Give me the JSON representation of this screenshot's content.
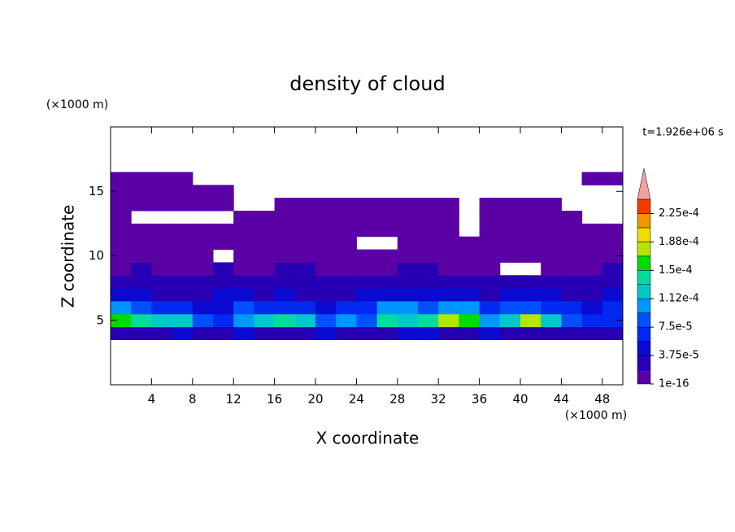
{
  "chart_data": {
    "type": "contour",
    "title": "density of cloud",
    "x_label": "X coordinate",
    "y_label": "Z coordinate",
    "x_unit": "(×1000 m)",
    "y_unit": "(×1000 m)",
    "time_label": "t=1.926e+06 s",
    "xlim": [
      0,
      50
    ],
    "ylim": [
      0,
      20
    ],
    "xticks": [
      4,
      8,
      12,
      16,
      20,
      24,
      28,
      32,
      36,
      40,
      44,
      48
    ],
    "yticks": [
      5,
      10,
      15
    ],
    "xbins": [
      0,
      2,
      4,
      6,
      8,
      10,
      12,
      14,
      16,
      18,
      20,
      22,
      24,
      26,
      28,
      30,
      32,
      34,
      36,
      38,
      40,
      42,
      44,
      46,
      48,
      50
    ],
    "ybins": [
      3.5,
      4.5,
      5.5,
      6.5,
      7.5,
      8.5,
      9.5,
      10.5,
      11.5,
      12.5,
      13.5,
      14.5,
      15.5,
      16.5
    ],
    "values": [
      [
        3e-05,
        3e-05,
        3e-05,
        4e-05,
        3e-05,
        3e-05,
        4e-05,
        3e-05,
        3e-05,
        3e-05,
        4e-05,
        3e-05,
        3e-05,
        3e-05,
        4e-05,
        4e-05,
        3e-05,
        3e-05,
        4e-05,
        3e-05,
        3e-05,
        3e-05,
        3e-05,
        3e-05,
        3e-05
      ],
      [
        0.00015,
        0.00014,
        0.00012,
        0.00012,
        9e-05,
        7e-05,
        0.00011,
        0.00012,
        0.00014,
        0.00013,
        8e-05,
        0.0001,
        9e-05,
        0.00014,
        0.00013,
        0.00014,
        0.00017,
        0.00016,
        0.0001,
        0.00012,
        0.00017,
        0.00013,
        8e-05,
        6e-05,
        7e-05
      ],
      [
        0.00011,
        8e-05,
        7e-05,
        6e-05,
        5e-05,
        5e-05,
        8e-05,
        7e-05,
        6e-05,
        6e-05,
        5e-05,
        6e-05,
        7e-05,
        0.00011,
        0.0001,
        9e-05,
        0.00011,
        0.0001,
        6e-05,
        8e-05,
        9e-05,
        7e-05,
        6e-05,
        5e-05,
        6e-05
      ],
      [
        4e-05,
        4e-05,
        3e-05,
        3e-05,
        3e-05,
        4e-05,
        4e-05,
        3e-05,
        4e-05,
        3e-05,
        3e-05,
        3e-05,
        4e-05,
        4e-05,
        4e-05,
        4e-05,
        4e-05,
        4e-05,
        3e-05,
        4e-05,
        4e-05,
        4e-05,
        3e-05,
        3e-05,
        4e-05
      ],
      [
        2e-05,
        2e-05,
        2e-05,
        3e-05,
        2e-05,
        2e-05,
        2e-05,
        3e-05,
        2e-05,
        2e-05,
        2e-05,
        2e-05,
        2e-05,
        2e-05,
        3e-05,
        2e-05,
        2e-05,
        2e-05,
        2e-05,
        2e-05,
        2e-05,
        3e-05,
        2e-05,
        2e-05,
        2e-05
      ],
      [
        1.5e-05,
        2e-05,
        1.5e-05,
        1.5e-05,
        1.5e-05,
        2e-05,
        1.5e-05,
        1.5e-05,
        2e-05,
        2e-05,
        1.5e-05,
        1.5e-05,
        1.5e-05,
        1.5e-05,
        2e-05,
        2e-05,
        1.5e-05,
        1.5e-05,
        1.5e-05,
        null,
        null,
        1.5e-05,
        1.5e-05,
        1.5e-05,
        2e-05
      ],
      [
        1e-05,
        1e-05,
        1e-05,
        1e-05,
        1e-05,
        null,
        1e-05,
        1e-05,
        1e-05,
        1e-05,
        1e-05,
        1e-05,
        1e-05,
        1e-05,
        1e-05,
        1e-05,
        1e-05,
        1e-05,
        1e-05,
        1e-05,
        1e-05,
        1e-05,
        1e-05,
        1e-05,
        1e-05
      ],
      [
        5e-06,
        5e-06,
        5e-06,
        5e-06,
        5e-06,
        5e-06,
        5e-06,
        5e-06,
        5e-06,
        5e-06,
        5e-06,
        5e-06,
        null,
        null,
        5e-06,
        5e-06,
        5e-06,
        5e-06,
        5e-06,
        5e-06,
        5e-06,
        5e-06,
        5e-06,
        5e-06,
        5e-06
      ],
      [
        5e-06,
        5e-06,
        5e-06,
        5e-06,
        5e-06,
        5e-06,
        5e-06,
        5e-06,
        5e-06,
        5e-06,
        5e-06,
        5e-06,
        5e-06,
        5e-06,
        5e-06,
        5e-06,
        5e-06,
        null,
        5e-06,
        5e-06,
        5e-06,
        5e-06,
        5e-06,
        5e-06,
        5e-06
      ],
      [
        5e-06,
        null,
        null,
        null,
        null,
        null,
        5e-06,
        5e-06,
        5e-06,
        5e-06,
        5e-06,
        5e-06,
        5e-06,
        5e-06,
        5e-06,
        5e-06,
        5e-06,
        null,
        5e-06,
        5e-06,
        5e-06,
        5e-06,
        5e-06,
        null,
        null
      ],
      [
        5e-06,
        5e-06,
        5e-06,
        5e-06,
        5e-06,
        5e-06,
        null,
        null,
        5e-06,
        5e-06,
        5e-06,
        5e-06,
        5e-06,
        5e-06,
        5e-06,
        5e-06,
        5e-06,
        null,
        5e-06,
        5e-06,
        5e-06,
        5e-06,
        null,
        null,
        null
      ],
      [
        5e-06,
        5e-06,
        5e-06,
        5e-06,
        5e-06,
        5e-06,
        null,
        null,
        null,
        null,
        null,
        null,
        null,
        null,
        null,
        null,
        null,
        null,
        null,
        null,
        null,
        null,
        null,
        null,
        null
      ],
      [
        5e-06,
        5e-06,
        5e-06,
        5e-06,
        null,
        null,
        null,
        null,
        null,
        null,
        null,
        null,
        null,
        null,
        null,
        null,
        null,
        null,
        null,
        null,
        null,
        null,
        null,
        5e-06,
        5e-06
      ]
    ],
    "levels": [
      1e-16,
      1.875e-05,
      3.75e-05,
      5.625e-05,
      7.5e-05,
      9.375e-05,
      0.0001125,
      0.00013125,
      0.00015,
      0.00016875,
      0.0001875,
      0.00020625,
      0.000225,
      0.00024375
    ],
    "colors": [
      "#5a00a5",
      "#2800b4",
      "#0a0ad2",
      "#0028f0",
      "#0050ff",
      "#0096ff",
      "#00c8c8",
      "#00dca0",
      "#00dc00",
      "#b4e600",
      "#f0dc00",
      "#f09600",
      "#f03c00",
      "#f0a0a0"
    ],
    "colorbar_ticks": [
      {
        "value": 1e-16,
        "label": "1e-16"
      },
      {
        "value": 3.75e-05,
        "label": "3.75e-5"
      },
      {
        "value": 7.5e-05,
        "label": "7.5e-5"
      },
      {
        "value": 0.0001125,
        "label": "1.12e-4"
      },
      {
        "value": 0.00015,
        "label": "1.5e-4"
      },
      {
        "value": 0.0001875,
        "label": "1.88e-4"
      },
      {
        "value": 0.000225,
        "label": "2.25e-4"
      }
    ]
  }
}
